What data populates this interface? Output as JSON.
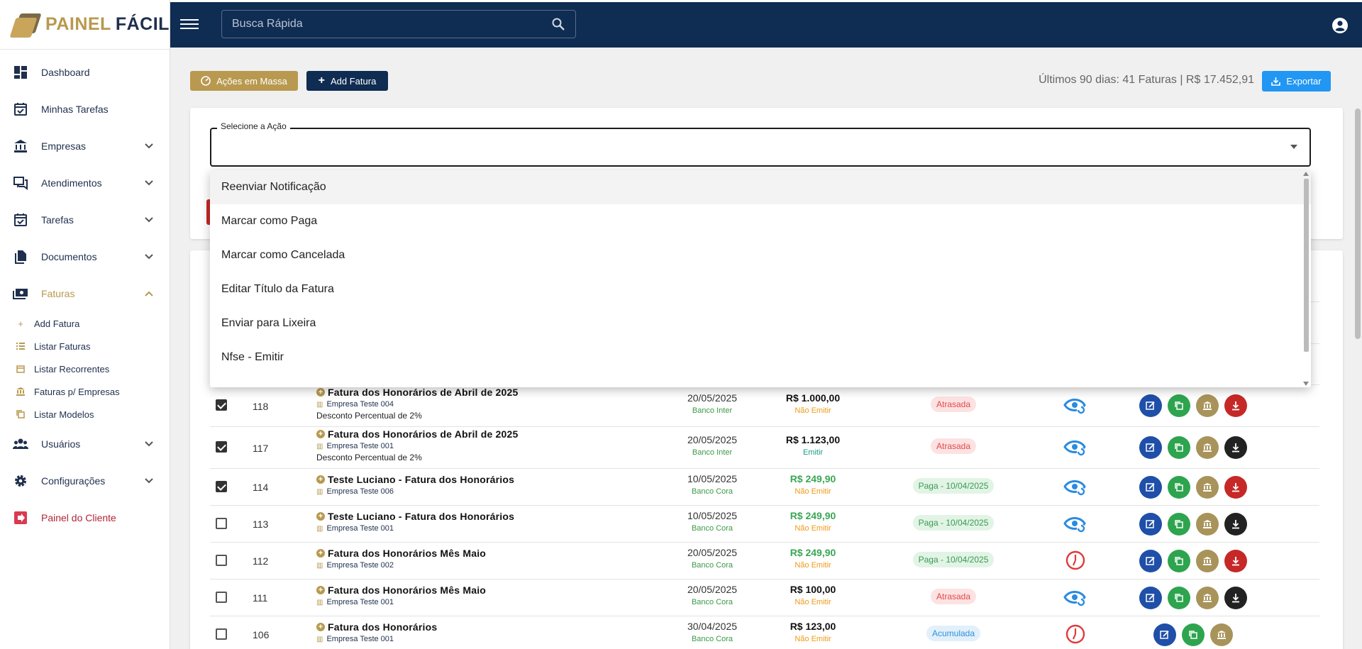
{
  "logo": {
    "word1": "PAINEL",
    "word2": "FÁCIL"
  },
  "search": {
    "placeholder": "Busca Rápida"
  },
  "sidebar": {
    "items": [
      {
        "label": "Dashboard",
        "icon": "dashboard-icon"
      },
      {
        "label": "Minhas Tarefas",
        "icon": "calendar-check-icon"
      },
      {
        "label": "Empresas",
        "icon": "bank-icon"
      },
      {
        "label": "Atendimentos",
        "icon": "chat-icon"
      },
      {
        "label": "Tarefas",
        "icon": "calendar-check-icon"
      },
      {
        "label": "Documentos",
        "icon": "document-icon"
      },
      {
        "label": "Faturas",
        "icon": "money-icon"
      },
      {
        "label": "Usuários",
        "icon": "users-icon"
      },
      {
        "label": "Configurações",
        "icon": "gear-icon"
      },
      {
        "label": "Painel do Cliente",
        "icon": "exit-icon"
      }
    ],
    "faturas_sub": [
      {
        "label": "Add Fatura",
        "icon": "plus-icon"
      },
      {
        "label": "Listar Faturas",
        "icon": "list-icon"
      },
      {
        "label": "Listar Recorrentes",
        "icon": "calendar-icon"
      },
      {
        "label": "Faturas p/ Empresas",
        "icon": "bank-icon"
      },
      {
        "label": "Listar Modelos",
        "icon": "copy-icon"
      }
    ]
  },
  "toolbar": {
    "mass_label": "Ações em Massa",
    "add_label": "Add Fatura",
    "summary": "Últimos 90 dias: 41 Faturas | R$ 17.452,91",
    "export_label": "Exportar"
  },
  "action_select": {
    "label": "Selecione a Ação",
    "options": [
      "Reenviar Notificação",
      "Marcar como Paga",
      "Marcar como Cancelada",
      "Editar Título da Fatura",
      "Enviar para Lixeira",
      "Nfse - Emitir"
    ]
  },
  "invoices": [
    {
      "checked": true,
      "id": "118",
      "title": "Fatura dos Honorários de Abril de 2025",
      "company": "Empresa Teste 004",
      "discount": "Desconto Percentual de 2%",
      "due": "20/05/2025",
      "bank": "Banco Inter",
      "value": "R$ 1.000,00",
      "paid": false,
      "nfse": "Não Emitir",
      "nfse_emit": false,
      "status": "Atrasada",
      "status_type": "late",
      "view": "eye",
      "download_color": "red"
    },
    {
      "checked": true,
      "id": "117",
      "title": "Fatura dos Honorários de Abril de 2025",
      "company": "Empresa Teste 001",
      "discount": "Desconto Percentual de 2%",
      "due": "20/05/2025",
      "bank": "Banco Inter",
      "value": "R$ 1.123,00",
      "paid": false,
      "nfse": "Emitir",
      "nfse_emit": true,
      "status": "Atrasada",
      "status_type": "late",
      "view": "eye",
      "download_color": "black"
    },
    {
      "checked": true,
      "id": "114",
      "title": "Teste Luciano - Fatura dos Honorários",
      "company": "Empresa Teste 006",
      "discount": "",
      "due": "10/05/2025",
      "bank": "Banco Cora",
      "value": "R$ 249,90",
      "paid": true,
      "nfse": "Não Emitir",
      "nfse_emit": false,
      "status": "Paga - 10/04/2025",
      "status_type": "paid",
      "view": "eye",
      "download_color": "red"
    },
    {
      "checked": false,
      "id": "113",
      "title": "Teste Luciano - Fatura dos Honorários",
      "company": "Empresa Teste 001",
      "discount": "",
      "due": "10/05/2025",
      "bank": "Banco Cora",
      "value": "R$ 249,90",
      "paid": true,
      "nfse": "Não Emitir",
      "nfse_emit": false,
      "status": "Paga - 10/04/2025",
      "status_type": "paid",
      "view": "eye",
      "download_color": "black"
    },
    {
      "checked": false,
      "id": "112",
      "title": "Fatura dos Honorários Mês Maio",
      "company": "Empresa Teste 002",
      "discount": "",
      "due": "20/05/2025",
      "bank": "Banco Cora",
      "value": "R$ 249,90",
      "paid": true,
      "nfse": "Não Emitir",
      "nfse_emit": false,
      "status": "Paga - 10/04/2025",
      "status_type": "paid",
      "view": "clock",
      "download_color": "red"
    },
    {
      "checked": false,
      "id": "111",
      "title": "Fatura dos Honorários Mês Maio",
      "company": "Empresa Teste 001",
      "discount": "",
      "due": "20/05/2025",
      "bank": "Banco Cora",
      "value": "R$ 100,00",
      "paid": false,
      "nfse": "Não Emitir",
      "nfse_emit": false,
      "status": "Atrasada",
      "status_type": "late",
      "view": "eye",
      "download_color": "black"
    },
    {
      "checked": false,
      "id": "106",
      "title": "Fatura dos Honorários",
      "company": "Empresa Teste 001",
      "discount": "",
      "due": "30/04/2025",
      "bank": "Banco Cora",
      "value": "R$ 123,00",
      "paid": false,
      "nfse": "Não Emitir",
      "nfse_emit": false,
      "status": "Acumulada",
      "status_type": "acc",
      "view": "clock",
      "download_color": "none"
    }
  ],
  "colors": {
    "navy": "#0f2c52",
    "gold": "#b8994f",
    "accent_blue": "#2196f3"
  }
}
